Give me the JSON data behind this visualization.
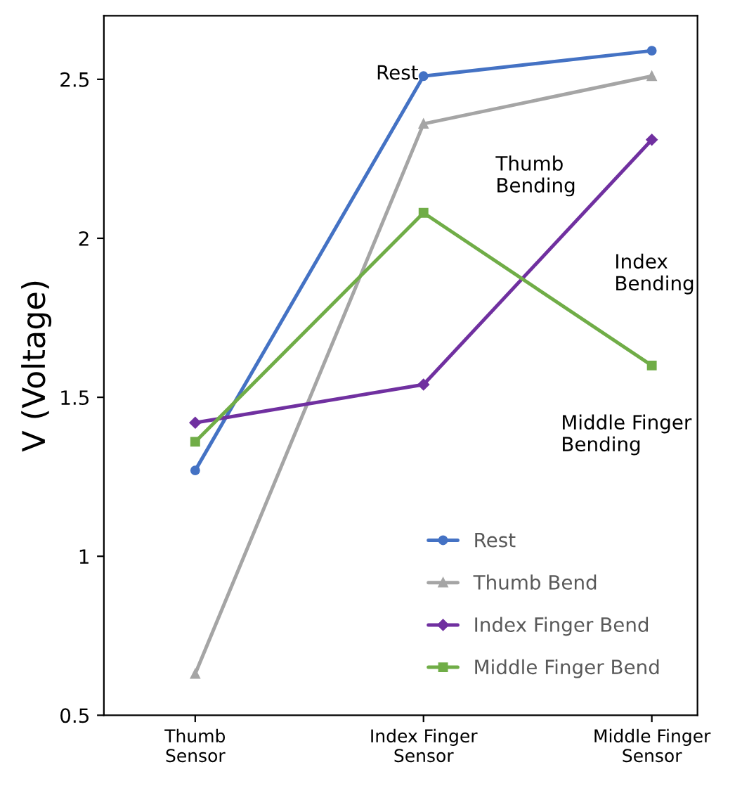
{
  "chart_data": {
    "type": "line",
    "ylabel": "V (Voltage)",
    "categories": [
      "Thumb\nSensor",
      "Index Finger\nSensor",
      "Middle Finger\nSensor"
    ],
    "ylim": [
      0.5,
      2.7
    ],
    "yticks": [
      0.5,
      1,
      1.5,
      2,
      2.5
    ],
    "grid": false,
    "legend": "bottom right",
    "series": [
      {
        "name": "Rest",
        "color": "#4472c4",
        "marker": "circle",
        "values": [
          1.27,
          2.51,
          2.59
        ]
      },
      {
        "name": "Thumb Bend",
        "color": "#a5a5a5",
        "marker": "triangle",
        "values": [
          0.63,
          2.36,
          2.51
        ]
      },
      {
        "name": "Index Finger Bend",
        "color": "#7030a0",
        "marker": "diamond",
        "values": [
          1.42,
          1.54,
          2.31
        ]
      },
      {
        "name": "Middle Finger Bend",
        "color": "#70ad47",
        "marker": "square",
        "values": [
          1.36,
          2.08,
          1.6
        ]
      }
    ],
    "annotations": [
      "Rest",
      "Thumb\nBending",
      "Index\nBending",
      "Middle Finger\nBending"
    ]
  }
}
